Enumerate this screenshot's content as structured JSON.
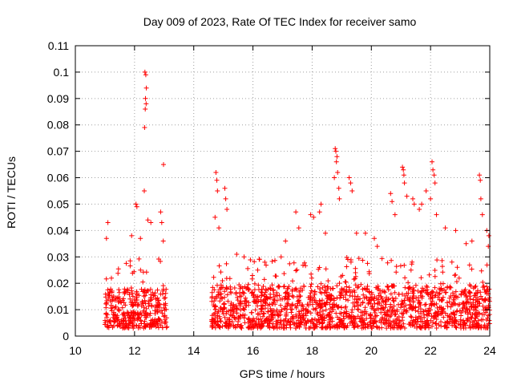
{
  "chart_data": {
    "type": "scatter",
    "title": "Day 009 of 2023, Rate Of TEC Index for receiver samo",
    "xlabel": "GPS time / hours",
    "ylabel": "ROTI / TECUs",
    "xlim": [
      10,
      24
    ],
    "ylim": [
      0,
      0.11
    ],
    "xticks": [
      10,
      12,
      14,
      16,
      18,
      20,
      22,
      24
    ],
    "xtick_labels": [
      "10",
      "12",
      "14",
      "16",
      "18",
      "20",
      "22",
      "24"
    ],
    "yticks": [
      0,
      0.01,
      0.02,
      0.03,
      0.04,
      0.05,
      0.06,
      0.07,
      0.08,
      0.09,
      0.1,
      0.11
    ],
    "ytick_labels": [
      "0",
      "0.01",
      "0.02",
      "0.03",
      "0.04",
      "0.05",
      "0.06",
      "0.07",
      "0.08",
      "0.09",
      "0.1",
      "0.11"
    ],
    "grid": true,
    "marker": "+",
    "marker_color": "#ff0000",
    "series": [
      {
        "name": "ROTI",
        "data_segments": [
          {
            "x_start": 11.0,
            "x_end": 13.1,
            "baseline_max": 0.018
          },
          {
            "x_start": 14.6,
            "x_end": 24.0,
            "baseline_max": 0.019
          }
        ],
        "outliers": [
          [
            12.35,
            0.1
          ],
          [
            12.38,
            0.099
          ],
          [
            12.4,
            0.094
          ],
          [
            12.37,
            0.09
          ],
          [
            12.39,
            0.088
          ],
          [
            12.36,
            0.086
          ],
          [
            12.34,
            0.079
          ],
          [
            12.98,
            0.065
          ],
          [
            12.33,
            0.055
          ],
          [
            12.05,
            0.05
          ],
          [
            12.08,
            0.049
          ],
          [
            12.45,
            0.044
          ],
          [
            12.55,
            0.043
          ],
          [
            12.88,
            0.047
          ],
          [
            12.92,
            0.043
          ],
          [
            11.1,
            0.043
          ],
          [
            11.05,
            0.037
          ],
          [
            12.97,
            0.036
          ],
          [
            11.9,
            0.038
          ],
          [
            12.2,
            0.037
          ],
          [
            14.75,
            0.062
          ],
          [
            14.78,
            0.059
          ],
          [
            14.8,
            0.055
          ],
          [
            14.72,
            0.045
          ],
          [
            15.05,
            0.056
          ],
          [
            15.08,
            0.052
          ],
          [
            15.12,
            0.048
          ],
          [
            14.85,
            0.041
          ],
          [
            15.45,
            0.031
          ],
          [
            15.7,
            0.03
          ],
          [
            16.4,
            0.028
          ],
          [
            16.95,
            0.03
          ],
          [
            17.1,
            0.036
          ],
          [
            17.45,
            0.047
          ],
          [
            17.55,
            0.041
          ],
          [
            17.95,
            0.046
          ],
          [
            18.05,
            0.045
          ],
          [
            18.25,
            0.047
          ],
          [
            18.3,
            0.05
          ],
          [
            18.45,
            0.039
          ],
          [
            18.78,
            0.071
          ],
          [
            18.8,
            0.07
          ],
          [
            18.84,
            0.068
          ],
          [
            18.82,
            0.066
          ],
          [
            18.86,
            0.062
          ],
          [
            18.75,
            0.06
          ],
          [
            18.9,
            0.056
          ],
          [
            18.92,
            0.052
          ],
          [
            19.25,
            0.06
          ],
          [
            19.3,
            0.058
          ],
          [
            19.35,
            0.055
          ],
          [
            19.5,
            0.039
          ],
          [
            19.8,
            0.039
          ],
          [
            20.1,
            0.037
          ],
          [
            20.2,
            0.034
          ],
          [
            20.65,
            0.054
          ],
          [
            20.7,
            0.051
          ],
          [
            20.8,
            0.046
          ],
          [
            21.05,
            0.064
          ],
          [
            21.08,
            0.063
          ],
          [
            21.1,
            0.061
          ],
          [
            21.12,
            0.058
          ],
          [
            21.2,
            0.053
          ],
          [
            21.4,
            0.052
          ],
          [
            21.45,
            0.05
          ],
          [
            21.62,
            0.048
          ],
          [
            21.7,
            0.05
          ],
          [
            21.85,
            0.055
          ],
          [
            22.05,
            0.066
          ],
          [
            22.08,
            0.063
          ],
          [
            22.12,
            0.061
          ],
          [
            22.15,
            0.058
          ],
          [
            22.0,
            0.052
          ],
          [
            22.2,
            0.046
          ],
          [
            22.5,
            0.041
          ],
          [
            22.85,
            0.04
          ],
          [
            23.2,
            0.035
          ],
          [
            23.4,
            0.036
          ],
          [
            23.65,
            0.061
          ],
          [
            23.68,
            0.059
          ],
          [
            23.7,
            0.052
          ],
          [
            23.75,
            0.046
          ],
          [
            23.9,
            0.04
          ],
          [
            23.97,
            0.038
          ],
          [
            23.95,
            0.034
          ]
        ]
      }
    ]
  }
}
